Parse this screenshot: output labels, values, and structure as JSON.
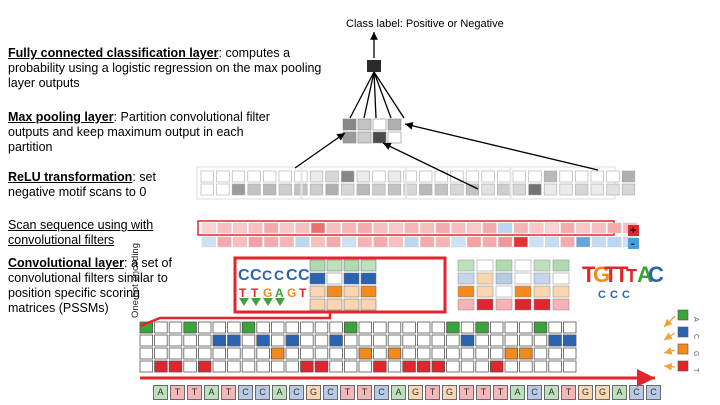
{
  "class_label": "Class label: Positive or Negative",
  "layers": {
    "fc": {
      "title": "Fully connected classification layer",
      "desc": ": computes a probability using a logistic regression on the max pooling layer outputs"
    },
    "maxpool": {
      "title": "Max pooling layer",
      "desc": ": Partition convolutional filter outputs and keep maximum output in each partition"
    },
    "relu": {
      "title": "ReLU transformation",
      "desc": ": set negative motif scans to 0"
    },
    "scan": {
      "title": "Scan sequence using with convolutional filters",
      "desc": ""
    },
    "conv": {
      "title": "Convolutional layer",
      "desc": ": a set of convolutional filters similar to position specific scoring matrices (PSSMs)"
    }
  },
  "one_hot_label": "One hot encoding",
  "scan_signs": {
    "plus": "+",
    "minus": "-"
  },
  "bases": [
    "A",
    "C",
    "G",
    "T"
  ],
  "base_colors": {
    "A": "#3aa33a",
    "C": "#2b63b3",
    "G": "#f28a1e",
    "T": "#e0262c"
  },
  "sequence": [
    "A",
    "T",
    "T",
    "A",
    "T",
    "C",
    "C",
    "A",
    "C",
    "G",
    "C",
    "T",
    "T",
    "C",
    "A",
    "G",
    "T",
    "G",
    "T",
    "T",
    "T",
    "A",
    "C",
    "A",
    "T",
    "G",
    "G",
    "A",
    "C",
    "C"
  ],
  "relu_intensity": {
    "row1": [
      0,
      0,
      0,
      0,
      0,
      0,
      0,
      0.1,
      0.2,
      0.6,
      0.1,
      0,
      0.1,
      0,
      0,
      0,
      0,
      0,
      0,
      0,
      0,
      0,
      0.35,
      0,
      0,
      0,
      0,
      0.4
    ],
    "row2": [
      0,
      0,
      0.5,
      0.3,
      0.35,
      0.25,
      0.3,
      0.25,
      0.4,
      0.2,
      0.35,
      0.25,
      0.3,
      0.2,
      0.35,
      0.3,
      0.2,
      0.3,
      0.15,
      0.25,
      0.2,
      0.7,
      0.1,
      0.1,
      0.2,
      0.1,
      0.15,
      0.2
    ]
  },
  "scan_intensity": {
    "pos": [
      0.1,
      0.2,
      0.15,
      0.2,
      0.3,
      0.15,
      0.2,
      0.6,
      0.2,
      0.25,
      0.3,
      0.2,
      0.15,
      0.25,
      0.2,
      0.3,
      0.2,
      0.15,
      0.3,
      -0.2,
      0.25,
      0.15,
      0.1,
      0.3,
      0.15,
      0.2,
      0.3,
      0.2
    ],
    "neg": [
      -0.1,
      0.3,
      0.2,
      0.35,
      0.3,
      0.25,
      -0.2,
      0.2,
      0.3,
      -0.1,
      0.25,
      0.3,
      0.2,
      -0.2,
      0.3,
      0.25,
      -0.1,
      0.35,
      0.3,
      0.4,
      0.9,
      -0.1,
      -0.15,
      0.3,
      -0.7,
      -0.15,
      -0.2,
      -0.1
    ]
  },
  "maxpool_intensity": [
    0.6,
    0.3,
    0.0,
    0.4,
    0.5,
    0.25,
    0.9,
    0.0
  ],
  "colors": {
    "accent_red": "#e0262c",
    "relu_gray": "#555555",
    "scan_red": "#e0262c",
    "scan_blue": "#4a9fd8",
    "arrow_orange": "#f2a23c"
  }
}
